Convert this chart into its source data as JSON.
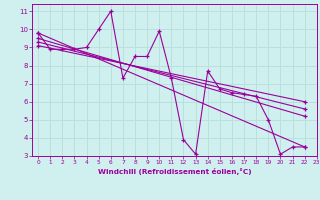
{
  "xlabel": "Windchill (Refroidissement éolien,°C)",
  "bg_color": "#cff0ee",
  "line_color": "#9b009b",
  "grid_color": "#b8e0dc",
  "xlim": [
    -0.5,
    23
  ],
  "ylim": [
    3,
    11.4
  ],
  "yticks": [
    3,
    4,
    5,
    6,
    7,
    8,
    9,
    10,
    11
  ],
  "xticks": [
    0,
    1,
    2,
    3,
    4,
    5,
    6,
    7,
    8,
    9,
    10,
    11,
    12,
    13,
    14,
    15,
    16,
    17,
    18,
    19,
    20,
    21,
    22,
    23
  ],
  "noisy_x": [
    0,
    1,
    2,
    3,
    4,
    5,
    6,
    7,
    8,
    9,
    10,
    11,
    12,
    13,
    14,
    15,
    16,
    17,
    18,
    19,
    20,
    21,
    22
  ],
  "noisy_y": [
    9.8,
    8.9,
    8.9,
    8.9,
    9.0,
    10.0,
    11.0,
    7.3,
    8.5,
    8.5,
    9.9,
    7.3,
    3.9,
    3.1,
    7.7,
    6.7,
    6.5,
    6.4,
    6.3,
    5.0,
    3.1,
    3.5,
    3.5
  ],
  "linear_lines": [
    {
      "x0": 0,
      "y0": 9.8,
      "x1": 22,
      "y1": 3.5
    },
    {
      "x0": 0,
      "y0": 9.5,
      "x1": 22,
      "y1": 5.2
    },
    {
      "x0": 0,
      "y0": 9.3,
      "x1": 22,
      "y1": 5.6
    },
    {
      "x0": 0,
      "y0": 9.1,
      "x1": 22,
      "y1": 6.0
    }
  ]
}
